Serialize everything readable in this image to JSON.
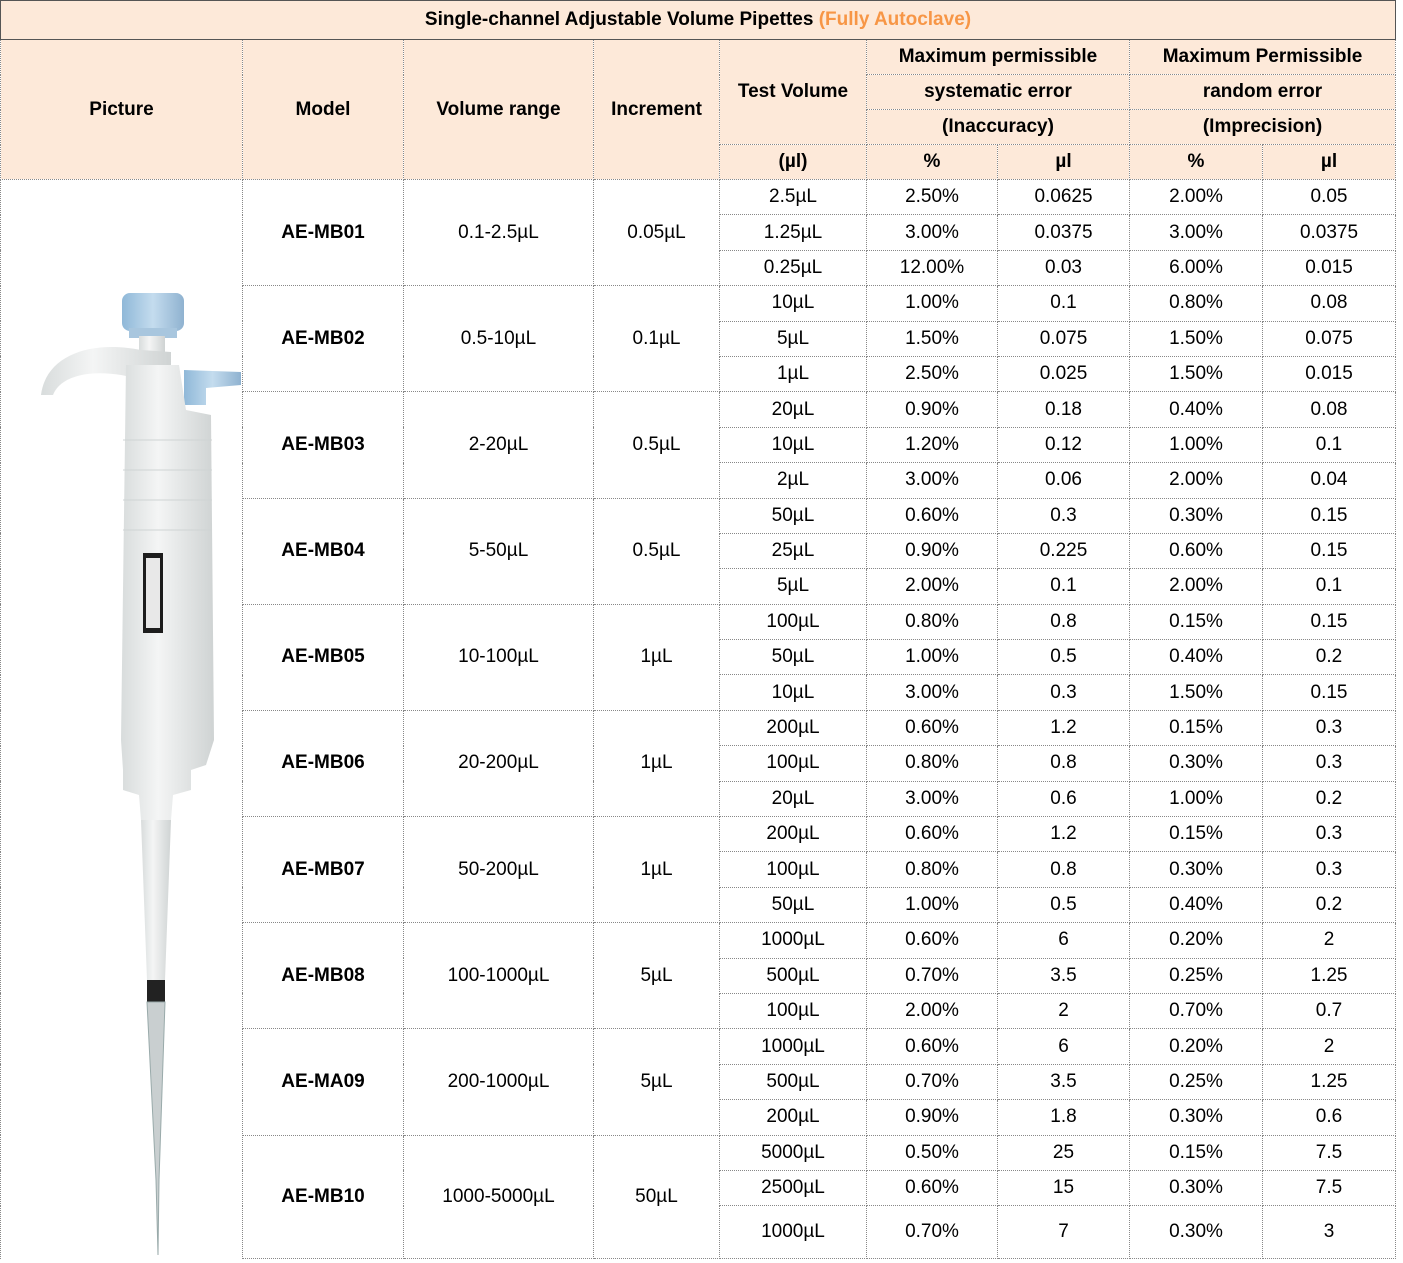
{
  "title": {
    "main": "Single-channel Adjustable Volume Pipettes",
    "note": "(Fully Autoclave)"
  },
  "header": {
    "picture": "Picture",
    "model": "Model",
    "volume_range": "Volume range",
    "increment": "Increment",
    "test_volume": "Test Volume",
    "test_volume_unit": "(µl)",
    "systematic": [
      "Maximum permissible",
      "systematic error",
      "(Inaccuracy)"
    ],
    "random": [
      "Maximum Permissible",
      "random error",
      "(Imprecision)"
    ],
    "units": [
      "%",
      "µl",
      "%",
      "µl"
    ]
  },
  "models": [
    {
      "model": "AE-MB01",
      "range": "0.1-2.5µL",
      "increment": "0.05µL",
      "tests": [
        [
          "2.5µL",
          "2.50%",
          "0.0625",
          "2.00%",
          "0.05"
        ],
        [
          "1.25µL",
          "3.00%",
          "0.0375",
          "3.00%",
          "0.0375"
        ],
        [
          "0.25µL",
          "12.00%",
          "0.03",
          "6.00%",
          "0.015"
        ]
      ]
    },
    {
      "model": "AE-MB02",
      "range": "0.5-10µL",
      "increment": "0.1µL",
      "tests": [
        [
          "10µL",
          "1.00%",
          "0.1",
          "0.80%",
          "0.08"
        ],
        [
          "5µL",
          "1.50%",
          "0.075",
          "1.50%",
          "0.075"
        ],
        [
          "1µL",
          "2.50%",
          "0.025",
          "1.50%",
          "0.015"
        ]
      ]
    },
    {
      "model": "AE-MB03",
      "range": "2-20µL",
      "increment": "0.5µL",
      "tests": [
        [
          "20µL",
          "0.90%",
          "0.18",
          "0.40%",
          "0.08"
        ],
        [
          "10µL",
          "1.20%",
          "0.12",
          "1.00%",
          "0.1"
        ],
        [
          "2µL",
          "3.00%",
          "0.06",
          "2.00%",
          "0.04"
        ]
      ]
    },
    {
      "model": "AE-MB04",
      "range": "5-50µL",
      "increment": "0.5µL",
      "tests": [
        [
          "50µL",
          "0.60%",
          "0.3",
          "0.30%",
          "0.15"
        ],
        [
          "25µL",
          "0.90%",
          "0.225",
          "0.60%",
          "0.15"
        ],
        [
          "5µL",
          "2.00%",
          "0.1",
          "2.00%",
          "0.1"
        ]
      ]
    },
    {
      "model": "AE-MB05",
      "range": "10-100µL",
      "increment": "1µL",
      "tests": [
        [
          "100µL",
          "0.80%",
          "0.8",
          "0.15%",
          "0.15"
        ],
        [
          "50µL",
          "1.00%",
          "0.5",
          "0.40%",
          "0.2"
        ],
        [
          "10µL",
          "3.00%",
          "0.3",
          "1.50%",
          "0.15"
        ]
      ]
    },
    {
      "model": "AE-MB06",
      "range": "20-200µL",
      "increment": "1µL",
      "tests": [
        [
          "200µL",
          "0.60%",
          "1.2",
          "0.15%",
          "0.3"
        ],
        [
          "100µL",
          "0.80%",
          "0.8",
          "0.30%",
          "0.3"
        ],
        [
          "20µL",
          "3.00%",
          "0.6",
          "1.00%",
          "0.2"
        ]
      ]
    },
    {
      "model": "AE-MB07",
      "range": "50-200µL",
      "increment": "1µL",
      "tests": [
        [
          "200µL",
          "0.60%",
          "1.2",
          "0.15%",
          "0.3"
        ],
        [
          "100µL",
          "0.80%",
          "0.8",
          "0.30%",
          "0.3"
        ],
        [
          "50µL",
          "1.00%",
          "0.5",
          "0.40%",
          "0.2"
        ]
      ]
    },
    {
      "model": "AE-MB08",
      "range": "100-1000µL",
      "increment": "5µL",
      "tests": [
        [
          "1000µL",
          "0.60%",
          "6",
          "0.20%",
          "2"
        ],
        [
          "500µL",
          "0.70%",
          "3.5",
          "0.25%",
          "1.25"
        ],
        [
          "100µL",
          "2.00%",
          "2",
          "0.70%",
          "0.7"
        ]
      ]
    },
    {
      "model": "AE-MA09",
      "range": "200-1000µL",
      "increment": "5µL",
      "tests": [
        [
          "1000µL",
          "0.60%",
          "6",
          "0.20%",
          "2"
        ],
        [
          "500µL",
          "0.70%",
          "3.5",
          "0.25%",
          "1.25"
        ],
        [
          "200µL",
          "0.90%",
          "1.8",
          "0.30%",
          "0.6"
        ]
      ]
    },
    {
      "model": "AE-MB10",
      "range": "1000-5000µL",
      "increment": "50µL",
      "tests": [
        [
          "5000µL",
          "0.50%",
          "25",
          "0.15%",
          "7.5"
        ],
        [
          "2500µL",
          "0.60%",
          "15",
          "0.30%",
          "7.5"
        ],
        [
          "1000µL",
          "0.70%",
          "7",
          "0.30%",
          "3"
        ]
      ]
    }
  ]
}
